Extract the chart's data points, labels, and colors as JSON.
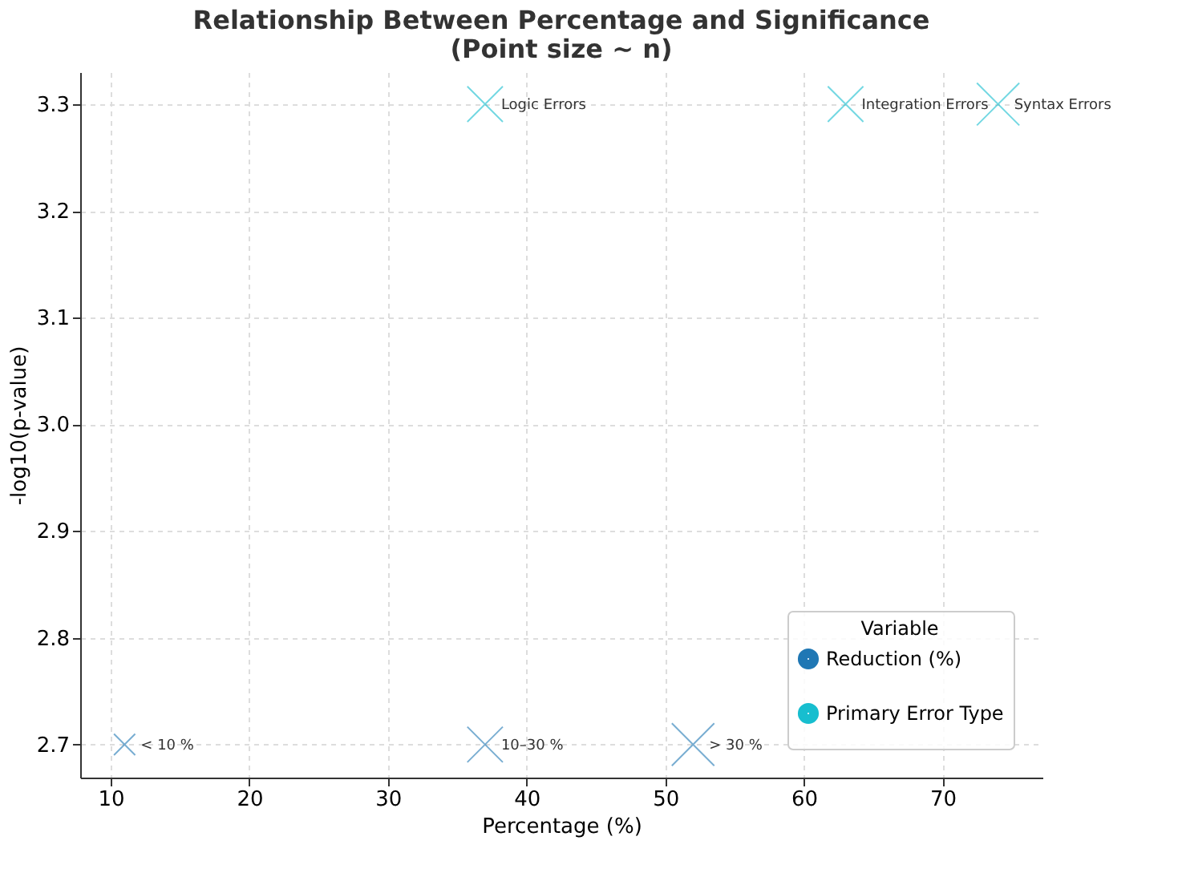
{
  "chart_data": {
    "type": "bubble",
    "title": "Relationship Between Percentage and Significance\n(Point size ~ n)",
    "xlabel": "Percentage (%)",
    "ylabel": "-log10(p-value)",
    "legend_title": "Variable",
    "series": [
      {
        "name": "Reduction (%)",
        "color": "#1f77b4",
        "x": [
          11,
          37,
          52
        ],
        "values": [
          2.7,
          2.7,
          2.7
        ],
        "sizes": [
          0.25,
          0.7,
          1
        ]
      },
      {
        "name": "Primary Error Type",
        "color": "#17becf",
        "x": [
          37,
          63,
          74
        ],
        "values": [
          3.3,
          3.3,
          3.3
        ],
        "sizes": [
          0.7,
          0.7,
          1
        ]
      }
    ],
    "annotations": [
      {
        "text": "< 10 %",
        "x": 11,
        "y": 2.7
      },
      {
        "text": "10–30 %",
        "x": 37,
        "y": 2.7
      },
      {
        "text": "> 30 %",
        "x": 52,
        "y": 2.7
      },
      {
        "text": "Logic Errors",
        "x": 37,
        "y": 3.3
      },
      {
        "text": "Integration Errors",
        "x": 63,
        "y": 3.3
      },
      {
        "text": "Syntax Errors",
        "x": 74,
        "y": 3.3
      }
    ],
    "xlim": [
      7.8,
      77.2
    ],
    "xticks": [
      10,
      20,
      30,
      40,
      50,
      60,
      70
    ],
    "ylim": [
      2.669,
      3.33
    ],
    "yticks": [
      2.7,
      2.8,
      2.9,
      {
        "value": 3,
        "label": "3.0"
      },
      3.1,
      3.2,
      3.3
    ],
    "grid": true,
    "legend": "bottom right",
    "marker": "cross"
  }
}
